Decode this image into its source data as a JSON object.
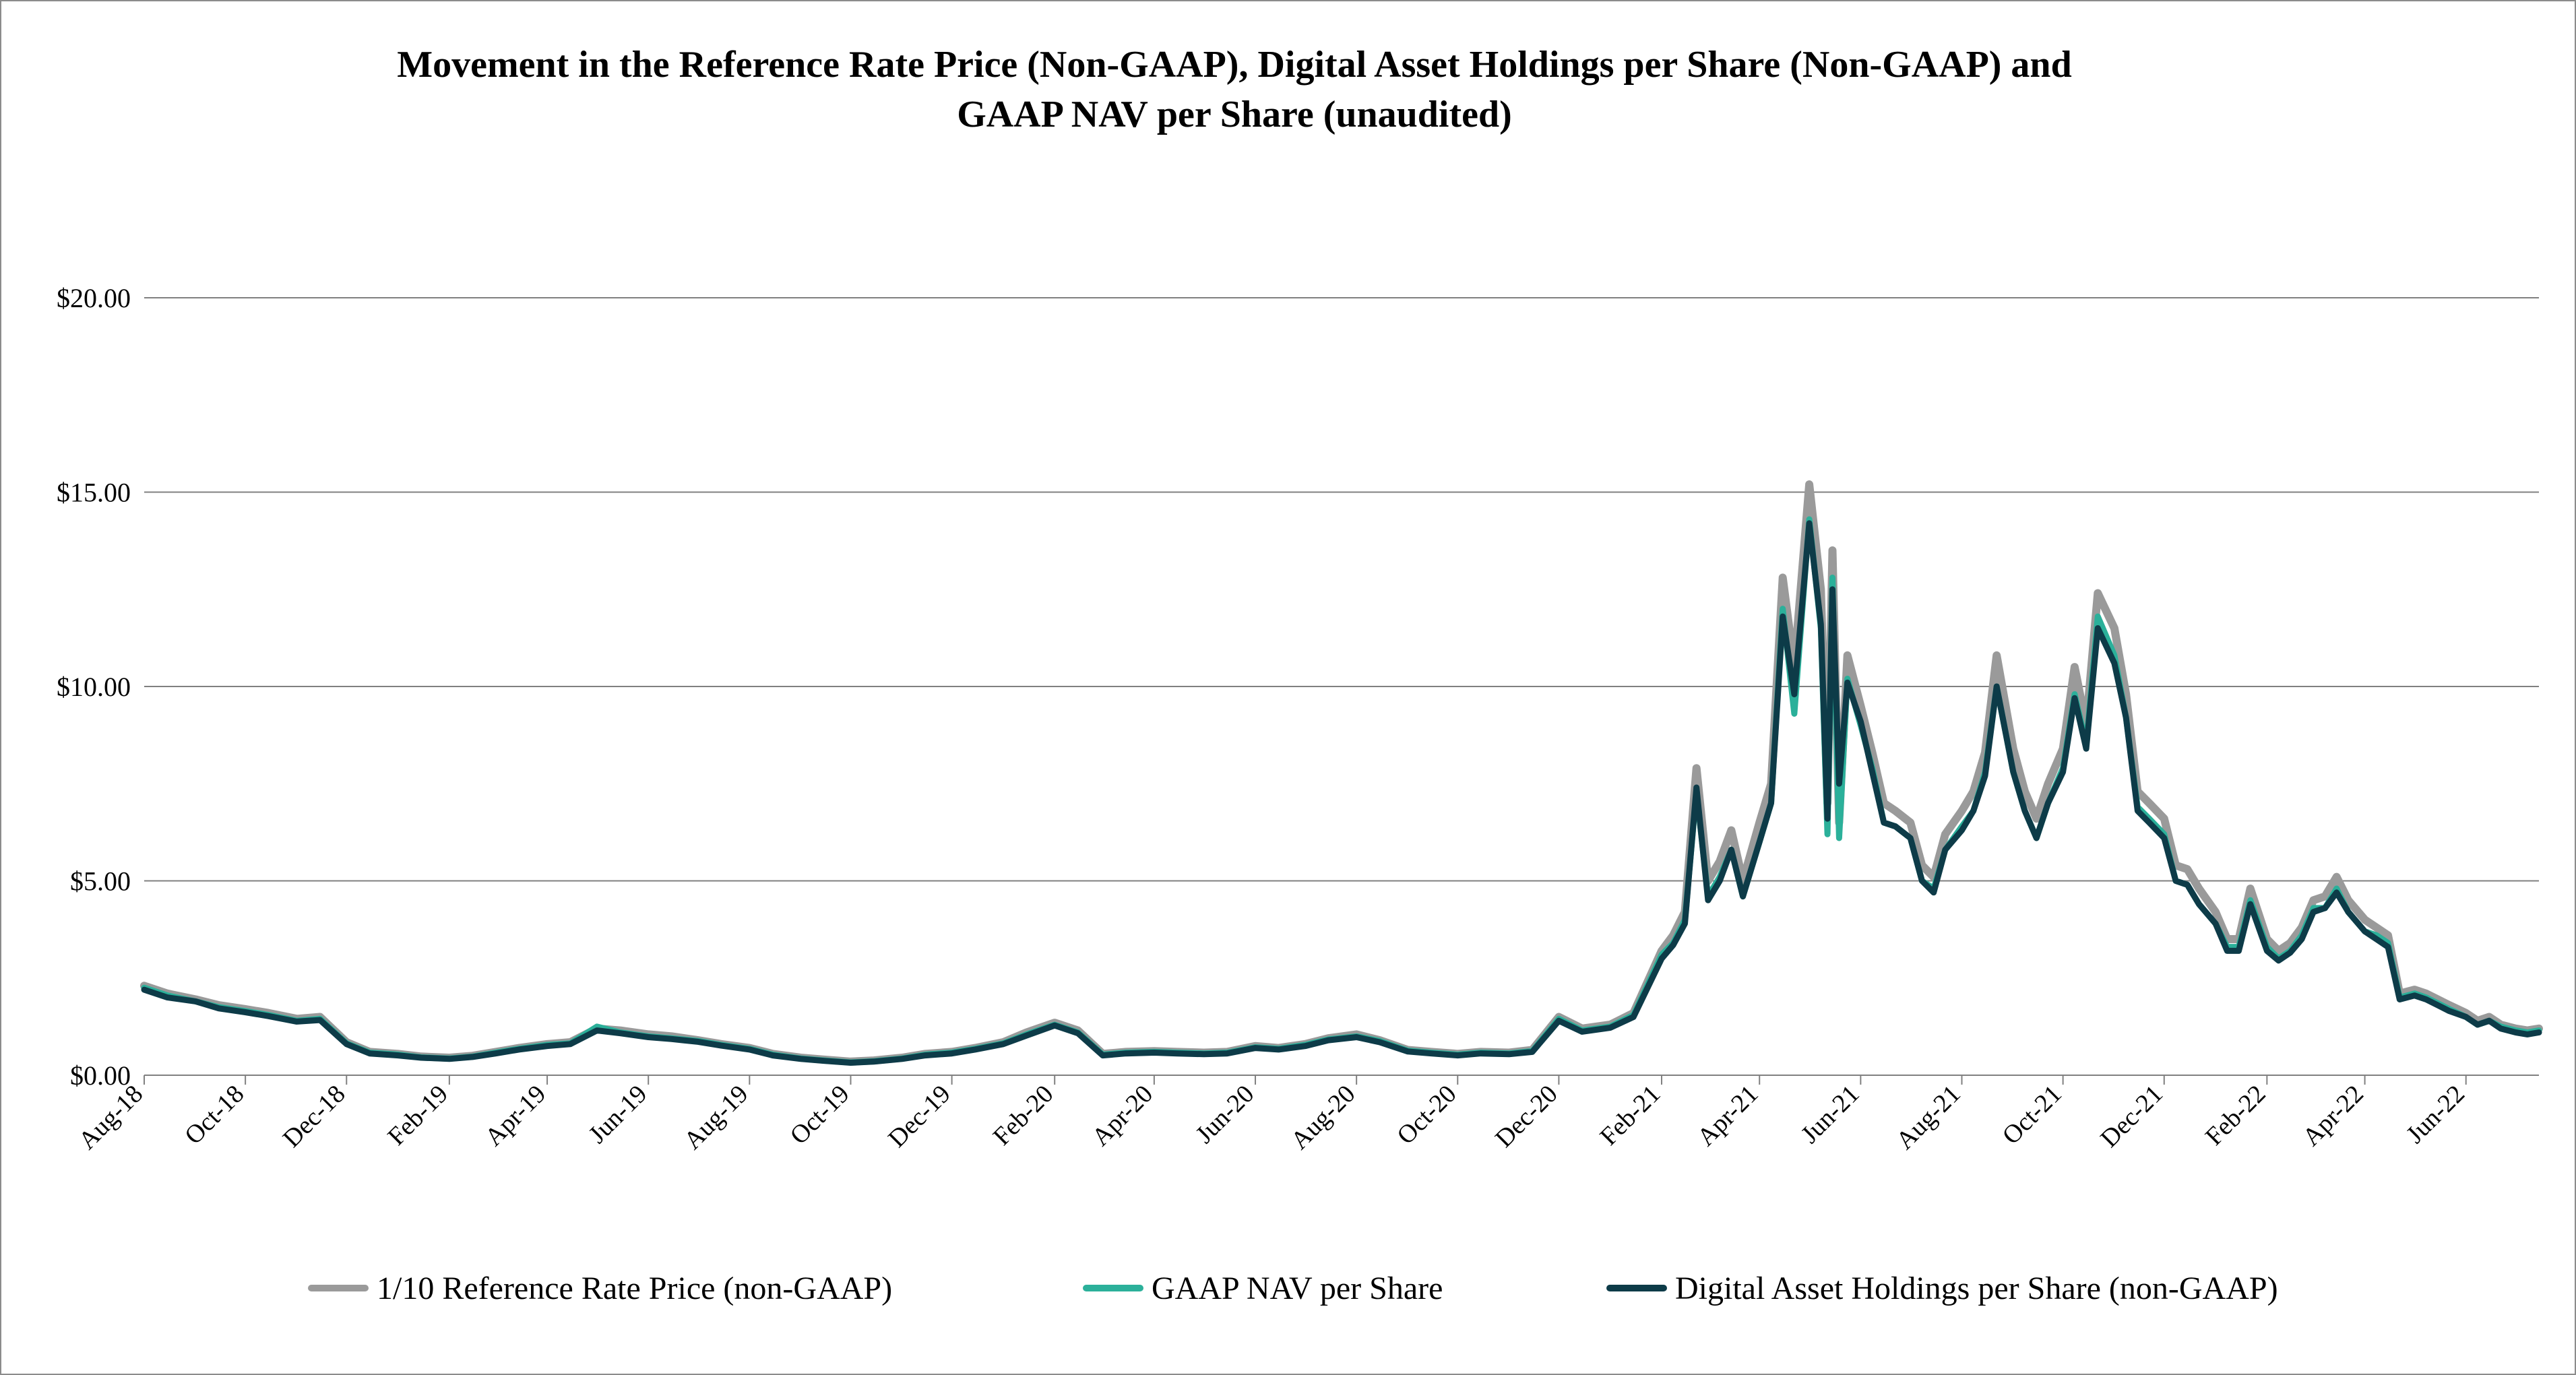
{
  "title_line1": "Movement in the Reference Rate Price (Non-GAAP), Digital Asset Holdings per Share (Non-GAAP) and",
  "title_line2": "GAAP NAV per Share (unaudited)",
  "legend": [
    {
      "label": "1/10 Reference Rate Price (non-GAAP)",
      "color": "#9a9a9a"
    },
    {
      "label": "GAAP NAV per Share",
      "color": "#2bb09a"
    },
    {
      "label": "Digital Asset Holdings per Share (non-GAAP)",
      "color": "#0d3b48"
    }
  ],
  "chart_data": {
    "type": "line",
    "ylim": [
      0,
      20
    ],
    "y_ticks": [
      "$0.00",
      "$5.00",
      "$10.00",
      "$15.00",
      "$20.00"
    ],
    "y_tick_values": [
      0,
      5,
      10,
      15,
      20
    ],
    "x_range": [
      "2018-08-01",
      "2022-07-15"
    ],
    "x_ticks": [
      {
        "label": "Aug-18",
        "date": "2018-08-01"
      },
      {
        "label": "Oct-18",
        "date": "2018-10-01"
      },
      {
        "label": "Dec-18",
        "date": "2018-12-01"
      },
      {
        "label": "Feb-19",
        "date": "2019-02-01"
      },
      {
        "label": "Apr-19",
        "date": "2019-04-01"
      },
      {
        "label": "Jun-19",
        "date": "2019-06-01"
      },
      {
        "label": "Aug-19",
        "date": "2019-08-01"
      },
      {
        "label": "Oct-19",
        "date": "2019-10-01"
      },
      {
        "label": "Dec-19",
        "date": "2019-12-01"
      },
      {
        "label": "Feb-20",
        "date": "2020-02-01"
      },
      {
        "label": "Apr-20",
        "date": "2020-04-01"
      },
      {
        "label": "Jun-20",
        "date": "2020-06-01"
      },
      {
        "label": "Aug-20",
        "date": "2020-08-01"
      },
      {
        "label": "Oct-20",
        "date": "2020-10-01"
      },
      {
        "label": "Dec-20",
        "date": "2020-12-01"
      },
      {
        "label": "Feb-21",
        "date": "2021-02-01"
      },
      {
        "label": "Apr-21",
        "date": "2021-04-01"
      },
      {
        "label": "Jun-21",
        "date": "2021-06-01"
      },
      {
        "label": "Aug-21",
        "date": "2021-08-01"
      },
      {
        "label": "Oct-21",
        "date": "2021-10-01"
      },
      {
        "label": "Dec-21",
        "date": "2021-12-01"
      },
      {
        "label": "Feb-22",
        "date": "2022-02-01"
      },
      {
        "label": "Apr-22",
        "date": "2022-04-01"
      },
      {
        "label": "Jun-22",
        "date": "2022-06-01"
      }
    ],
    "grid": true,
    "legend_position": "bottom",
    "x": [
      "2018-08-01",
      "2018-08-15",
      "2018-09-01",
      "2018-09-15",
      "2018-10-01",
      "2018-10-15",
      "2018-11-01",
      "2018-11-15",
      "2018-12-01",
      "2018-12-15",
      "2019-01-01",
      "2019-01-15",
      "2019-02-01",
      "2019-02-15",
      "2019-03-01",
      "2019-03-15",
      "2019-04-01",
      "2019-04-15",
      "2019-05-01",
      "2019-05-15",
      "2019-06-01",
      "2019-06-15",
      "2019-07-01",
      "2019-07-15",
      "2019-08-01",
      "2019-08-15",
      "2019-09-01",
      "2019-09-15",
      "2019-10-01",
      "2019-10-15",
      "2019-11-01",
      "2019-11-15",
      "2019-12-01",
      "2019-12-15",
      "2020-01-01",
      "2020-01-15",
      "2020-02-01",
      "2020-02-15",
      "2020-03-01",
      "2020-03-15",
      "2020-04-01",
      "2020-04-15",
      "2020-05-01",
      "2020-05-15",
      "2020-06-01",
      "2020-06-15",
      "2020-07-01",
      "2020-07-15",
      "2020-08-01",
      "2020-08-15",
      "2020-09-01",
      "2020-09-15",
      "2020-10-01",
      "2020-10-15",
      "2020-11-01",
      "2020-11-15",
      "2020-12-01",
      "2020-12-15",
      "2021-01-01",
      "2021-01-15",
      "2021-02-01",
      "2021-02-08",
      "2021-02-15",
      "2021-02-22",
      "2021-03-01",
      "2021-03-08",
      "2021-03-15",
      "2021-03-22",
      "2021-04-01",
      "2021-04-08",
      "2021-04-15",
      "2021-04-22",
      "2021-05-01",
      "2021-05-08",
      "2021-05-12",
      "2021-05-15",
      "2021-05-19",
      "2021-05-24",
      "2021-06-01",
      "2021-06-08",
      "2021-06-15",
      "2021-06-22",
      "2021-07-01",
      "2021-07-08",
      "2021-07-15",
      "2021-07-22",
      "2021-08-01",
      "2021-08-08",
      "2021-08-15",
      "2021-08-22",
      "2021-09-01",
      "2021-09-08",
      "2021-09-15",
      "2021-09-22",
      "2021-10-01",
      "2021-10-08",
      "2021-10-15",
      "2021-10-22",
      "2021-11-01",
      "2021-11-08",
      "2021-11-15",
      "2021-11-22",
      "2021-12-01",
      "2021-12-08",
      "2021-12-15",
      "2021-12-22",
      "2022-01-01",
      "2022-01-08",
      "2022-01-15",
      "2022-01-22",
      "2022-02-01",
      "2022-02-08",
      "2022-02-15",
      "2022-02-22",
      "2022-03-01",
      "2022-03-08",
      "2022-03-15",
      "2022-03-22",
      "2022-04-01",
      "2022-04-08",
      "2022-04-15",
      "2022-04-22",
      "2022-05-01",
      "2022-05-08",
      "2022-05-15",
      "2022-05-22",
      "2022-06-01",
      "2022-06-08",
      "2022-06-15",
      "2022-06-22",
      "2022-07-01",
      "2022-07-08",
      "2022-07-15"
    ],
    "series": [
      {
        "name": "1/10 Reference Rate Price (non-GAAP)",
        "color": "#9a9a9a",
        "values": [
          2.3,
          2.1,
          1.95,
          1.8,
          1.7,
          1.6,
          1.45,
          1.5,
          0.85,
          0.6,
          0.55,
          0.48,
          0.45,
          0.5,
          0.6,
          0.7,
          0.8,
          0.85,
          1.2,
          1.15,
          1.05,
          1.0,
          0.9,
          0.8,
          0.7,
          0.55,
          0.45,
          0.4,
          0.35,
          0.38,
          0.45,
          0.55,
          0.6,
          0.7,
          0.85,
          1.1,
          1.35,
          1.15,
          0.55,
          0.6,
          0.62,
          0.6,
          0.58,
          0.6,
          0.75,
          0.7,
          0.8,
          0.95,
          1.05,
          0.9,
          0.65,
          0.6,
          0.55,
          0.6,
          0.58,
          0.65,
          1.5,
          1.2,
          1.3,
          1.6,
          3.2,
          3.6,
          4.2,
          7.9,
          5.0,
          5.5,
          6.3,
          5.0,
          6.5,
          7.5,
          12.8,
          10.5,
          15.2,
          12.5,
          7.0,
          13.5,
          6.5,
          10.8,
          9.5,
          8.3,
          7.0,
          6.8,
          6.5,
          5.4,
          5.1,
          6.2,
          6.8,
          7.3,
          8.3,
          10.8,
          8.4,
          7.3,
          6.6,
          7.5,
          8.4,
          10.5,
          9.0,
          12.4,
          11.5,
          9.8,
          7.3,
          7.0,
          6.6,
          5.4,
          5.3,
          4.8,
          4.2,
          3.5,
          3.5,
          4.8,
          3.5,
          3.2,
          3.4,
          3.8,
          4.5,
          4.6,
          5.1,
          4.5,
          4.0,
          3.8,
          3.6,
          2.1,
          2.2,
          2.1,
          1.95,
          1.8,
          1.6,
          1.4,
          1.5,
          1.3,
          1.2,
          1.15,
          1.2
        ]
      },
      {
        "name": "GAAP NAV per Share",
        "color": "#2bb09a",
        "values": [
          2.25,
          2.05,
          1.9,
          1.75,
          1.65,
          1.55,
          1.4,
          1.45,
          0.82,
          0.58,
          0.53,
          0.46,
          0.43,
          0.48,
          0.58,
          0.68,
          0.78,
          0.82,
          1.25,
          1.1,
          1.0,
          0.95,
          0.88,
          0.78,
          0.68,
          0.53,
          0.43,
          0.38,
          0.33,
          0.36,
          0.43,
          0.53,
          0.58,
          0.68,
          0.82,
          1.05,
          1.3,
          1.1,
          0.53,
          0.58,
          0.6,
          0.58,
          0.56,
          0.58,
          0.72,
          0.68,
          0.78,
          0.92,
          1.0,
          0.88,
          0.63,
          0.58,
          0.53,
          0.58,
          0.56,
          0.62,
          1.45,
          1.15,
          1.25,
          1.55,
          3.1,
          3.4,
          4.0,
          7.3,
          4.6,
          5.1,
          5.8,
          4.6,
          6.0,
          7.0,
          12.0,
          9.3,
          14.3,
          11.5,
          6.2,
          12.8,
          6.1,
          10.2,
          9.0,
          7.9,
          6.5,
          6.4,
          6.1,
          5.0,
          4.8,
          5.8,
          6.4,
          6.8,
          7.8,
          10.0,
          7.8,
          6.8,
          6.1,
          7.0,
          7.9,
          9.8,
          8.5,
          11.8,
          10.8,
          9.2,
          6.9,
          6.6,
          6.2,
          5.0,
          4.9,
          4.4,
          3.9,
          3.3,
          3.3,
          4.5,
          3.3,
          3.0,
          3.2,
          3.6,
          4.3,
          4.3,
          4.8,
          4.2,
          3.7,
          3.6,
          3.4,
          2.0,
          2.1,
          2.0,
          1.85,
          1.7,
          1.5,
          1.3,
          1.4,
          1.25,
          1.15,
          1.1,
          1.15
        ]
      },
      {
        "name": "Digital Asset Holdings per Share (non-GAAP)",
        "color": "#0d3b48",
        "values": [
          2.2,
          2.0,
          1.9,
          1.72,
          1.62,
          1.52,
          1.38,
          1.42,
          0.8,
          0.56,
          0.51,
          0.45,
          0.42,
          0.47,
          0.56,
          0.66,
          0.75,
          0.8,
          1.15,
          1.08,
          0.98,
          0.93,
          0.86,
          0.76,
          0.66,
          0.51,
          0.42,
          0.37,
          0.32,
          0.35,
          0.42,
          0.51,
          0.56,
          0.66,
          0.8,
          1.02,
          1.28,
          1.08,
          0.51,
          0.56,
          0.58,
          0.56,
          0.54,
          0.56,
          0.7,
          0.66,
          0.75,
          0.9,
          0.98,
          0.85,
          0.61,
          0.56,
          0.51,
          0.56,
          0.54,
          0.6,
          1.4,
          1.12,
          1.22,
          1.5,
          3.0,
          3.35,
          3.9,
          7.4,
          4.5,
          5.0,
          5.8,
          4.6,
          6.0,
          7.0,
          11.8,
          9.8,
          14.2,
          11.6,
          6.6,
          12.5,
          7.5,
          10.1,
          9.1,
          7.8,
          6.5,
          6.4,
          6.1,
          5.0,
          4.7,
          5.8,
          6.3,
          6.8,
          7.7,
          10.0,
          7.8,
          6.8,
          6.1,
          7.0,
          7.8,
          9.7,
          8.4,
          11.5,
          10.6,
          9.2,
          6.8,
          6.5,
          6.1,
          5.0,
          4.9,
          4.4,
          3.9,
          3.2,
          3.2,
          4.4,
          3.2,
          2.95,
          3.15,
          3.5,
          4.2,
          4.3,
          4.7,
          4.2,
          3.7,
          3.5,
          3.3,
          1.95,
          2.05,
          1.95,
          1.8,
          1.65,
          1.5,
          1.3,
          1.4,
          1.2,
          1.1,
          1.05,
          1.1
        ]
      }
    ]
  }
}
